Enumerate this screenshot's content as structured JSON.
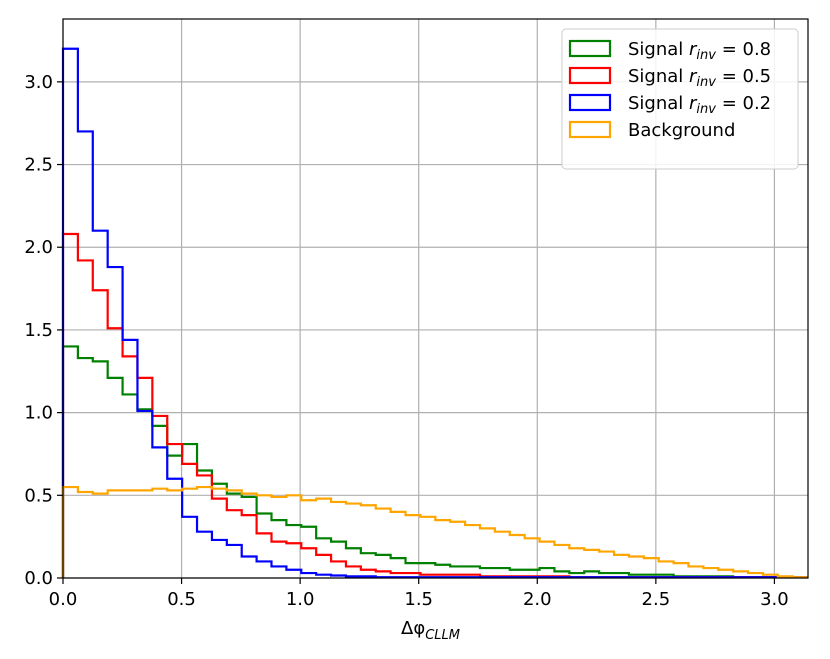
{
  "chart_data": {
    "type": "histogram-step",
    "xlabel_base": "Δφ",
    "xlabel_sub": "CLLM",
    "xlim": [
      0,
      3.1416
    ],
    "ylim": [
      0,
      3.38
    ],
    "grid": true,
    "legend_placement": "upper right",
    "bin_width": 0.0628,
    "x_ticks": [
      "0.0",
      "0.5",
      "1.0",
      "1.5",
      "2.0",
      "2.5",
      "3.0"
    ],
    "x_tick_values": [
      0,
      0.5,
      1.0,
      1.5,
      2.0,
      2.5,
      3.0
    ],
    "y_ticks": [
      "0.0",
      "0.5",
      "1.0",
      "1.5",
      "2.0",
      "2.5",
      "3.0"
    ],
    "y_tick_values": [
      0,
      0.5,
      1.0,
      1.5,
      2.0,
      2.5,
      3.0
    ],
    "series": [
      {
        "name_prefix": "Signal ",
        "name_sym": "r",
        "name_sub": "inv",
        "name_suffix": " = 0.8",
        "color": "#008000",
        "values": [
          1.4,
          1.33,
          1.31,
          1.21,
          1.11,
          1.02,
          0.92,
          0.74,
          0.81,
          0.65,
          0.57,
          0.51,
          0.49,
          0.39,
          0.35,
          0.32,
          0.31,
          0.24,
          0.22,
          0.18,
          0.15,
          0.14,
          0.12,
          0.09,
          0.09,
          0.08,
          0.07,
          0.07,
          0.06,
          0.06,
          0.05,
          0.05,
          0.06,
          0.04,
          0.03,
          0.04,
          0.03,
          0.03,
          0.02,
          0.02,
          0.02,
          0.01,
          0.01,
          0.01,
          0.01,
          0.005,
          0.005,
          0.005,
          0.005,
          0.005
        ]
      },
      {
        "name_prefix": "Signal ",
        "name_sym": "r",
        "name_sub": "inv",
        "name_suffix": " = 0.5",
        "color": "#ff0000",
        "values": [
          2.08,
          1.92,
          1.74,
          1.51,
          1.34,
          1.21,
          0.98,
          0.81,
          0.69,
          0.62,
          0.48,
          0.41,
          0.38,
          0.27,
          0.22,
          0.21,
          0.18,
          0.14,
          0.1,
          0.07,
          0.05,
          0.04,
          0.03,
          0.03,
          0.02,
          0.02,
          0.02,
          0.02,
          0.01,
          0.01,
          0.01,
          0.01,
          0.01,
          0.01,
          0.005,
          0.005,
          0.005,
          0.005,
          0.005,
          0.005,
          0.005,
          0.005,
          0.005,
          0.005,
          0.005,
          0.005,
          0.005,
          0.005,
          0.005,
          0.005
        ]
      },
      {
        "name_prefix": "Signal ",
        "name_sym": "r",
        "name_sub": "inv",
        "name_suffix": " = 0.2",
        "color": "#0000ff",
        "values": [
          3.2,
          2.7,
          2.1,
          1.88,
          1.44,
          1.01,
          0.79,
          0.6,
          0.37,
          0.28,
          0.23,
          0.2,
          0.13,
          0.1,
          0.07,
          0.05,
          0.03,
          0.02,
          0.015,
          0.01,
          0.01,
          0.005,
          0.005,
          0.005,
          0.005,
          0.005,
          0.005,
          0.005,
          0.005,
          0.005,
          0.005,
          0.005,
          0.005,
          0.005,
          0.005,
          0.005,
          0.005,
          0.005,
          0.005,
          0.005,
          0.005,
          0.005,
          0.005,
          0.005,
          0.005,
          0.005,
          0.005,
          0.005,
          0.005,
          0.005
        ]
      },
      {
        "name_prefix": "Background",
        "name_sym": "",
        "name_sub": "",
        "name_suffix": "",
        "color": "#ffa500",
        "values": [
          0.55,
          0.52,
          0.51,
          0.53,
          0.53,
          0.53,
          0.54,
          0.53,
          0.54,
          0.55,
          0.54,
          0.53,
          0.51,
          0.5,
          0.49,
          0.5,
          0.47,
          0.48,
          0.46,
          0.45,
          0.44,
          0.42,
          0.4,
          0.38,
          0.37,
          0.35,
          0.34,
          0.32,
          0.3,
          0.28,
          0.26,
          0.24,
          0.22,
          0.2,
          0.18,
          0.17,
          0.16,
          0.14,
          0.13,
          0.12,
          0.1,
          0.09,
          0.07,
          0.06,
          0.05,
          0.04,
          0.03,
          0.02,
          0.01,
          0.005
        ]
      }
    ]
  }
}
